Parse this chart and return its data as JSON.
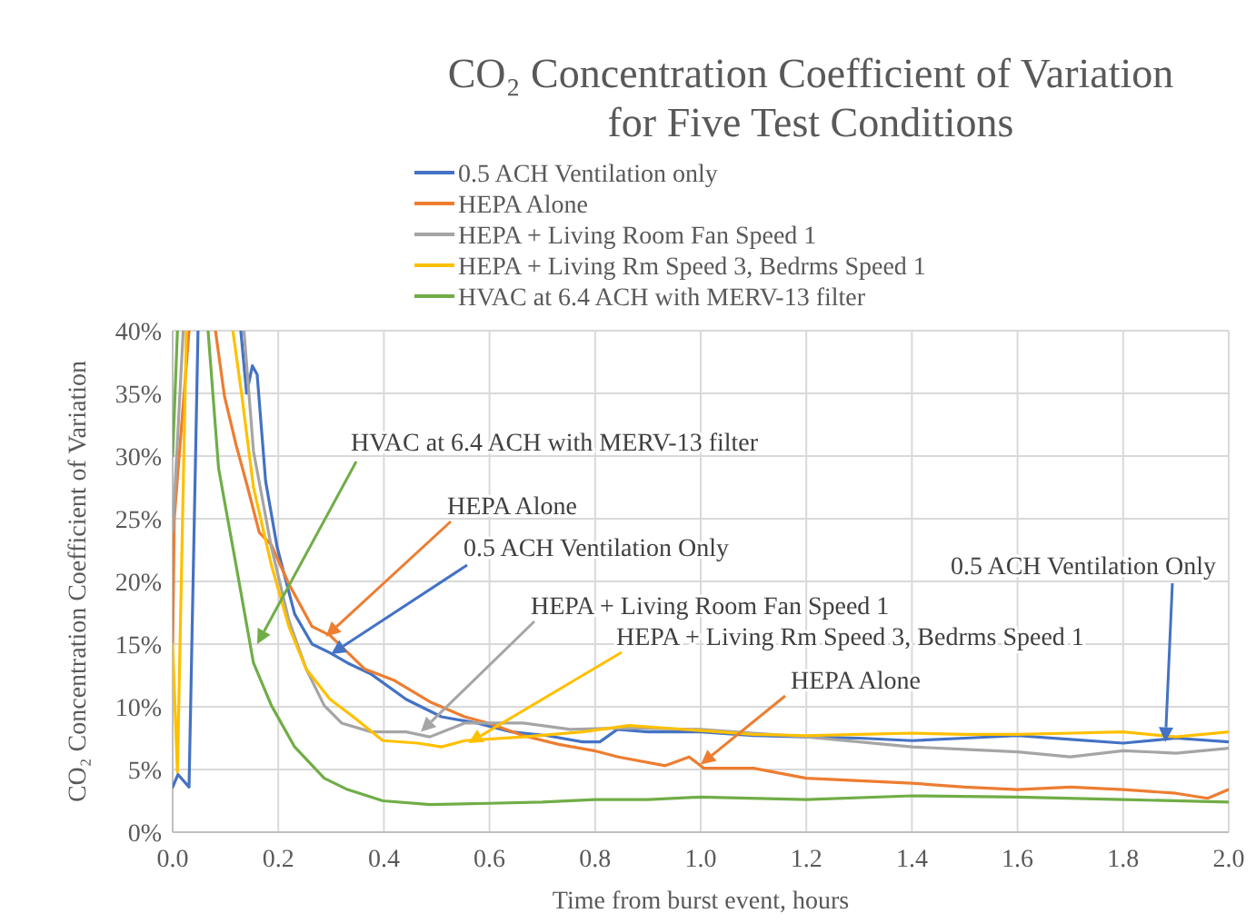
{
  "chart_data": {
    "type": "line",
    "title": "CO₂ Concentration Coefficient of Variation",
    "subtitle": "for Five Test Conditions",
    "xlabel": "Time from burst event, hours",
    "ylabel": "CO₂ Concentration Coefficient of Variation",
    "xlim": [
      0,
      2
    ],
    "xticks": [
      {
        "value": 0,
        "label": "0.0"
      },
      {
        "value": 0.2,
        "label": "0.2"
      },
      {
        "value": 0.4,
        "label": "0.4"
      },
      {
        "value": 0.6,
        "label": "0.6"
      },
      {
        "value": 0.8,
        "label": "0.8"
      },
      {
        "value": 1,
        "label": "1.0"
      },
      {
        "value": 1.2,
        "label": "1.2"
      },
      {
        "value": 1.4,
        "label": "1.4"
      },
      {
        "value": 1.6,
        "label": "1.6"
      },
      {
        "value": 1.8,
        "label": "1.8"
      },
      {
        "value": 2,
        "label": "2.0"
      }
    ],
    "ylim": [
      0,
      40
    ],
    "yticks": [
      {
        "value": 0,
        "label": "0%"
      },
      {
        "value": 5,
        "label": "5%"
      },
      {
        "value": 10,
        "label": "10%"
      },
      {
        "value": 15,
        "label": "15%"
      },
      {
        "value": 20,
        "label": "20%"
      },
      {
        "value": 25,
        "label": "25%"
      },
      {
        "value": 30,
        "label": "30%"
      },
      {
        "value": 35,
        "label": "35%"
      },
      {
        "value": 40,
        "label": "40%"
      }
    ],
    "grid": true,
    "legend": "top",
    "marker": "none",
    "line_style": "solid",
    "series": [
      {
        "name": "0.5 ACH Ventilation only",
        "color": "#4472c4",
        "x": [
          0,
          0.01,
          0.031,
          0.048,
          0.09,
          0.129,
          0.14,
          0.151,
          0.16,
          0.176,
          0.198,
          0.231,
          0.264,
          0.298,
          0.331,
          0.376,
          0.442,
          0.509,
          0.576,
          0.642,
          0.709,
          0.776,
          0.809,
          0.842,
          0.9,
          1.0,
          1.1,
          1.2,
          1.3,
          1.4,
          1.5,
          1.6,
          1.7,
          1.8,
          1.9,
          2.0
        ],
        "values": [
          3.6,
          4.6,
          3.6,
          40,
          null,
          40,
          35,
          37.2,
          36.5,
          28,
          22.7,
          17.4,
          15,
          14.3,
          13.5,
          12.6,
          10.6,
          9.2,
          8.7,
          8.0,
          7.7,
          7.2,
          7.2,
          8.2,
          8.0,
          8.0,
          7.7,
          7.6,
          7.5,
          7.3,
          7.5,
          7.7,
          7.4,
          7.1,
          7.5,
          7.2
        ]
      },
      {
        "name": "HEPA Alone",
        "color": "#ed7d31",
        "x": [
          0,
          0.003,
          0.031,
          0.05,
          0.081,
          0.098,
          0.12,
          0.142,
          0.164,
          0.187,
          0.22,
          0.264,
          0.298,
          0.364,
          0.42,
          0.487,
          0.553,
          0.598,
          0.664,
          0.731,
          0.798,
          0.844,
          0.933,
          0.978,
          1.006,
          1.1,
          1.2,
          1.3,
          1.4,
          1.5,
          1.6,
          1.7,
          1.8,
          1.9,
          1.96,
          2.0
        ],
        "values": [
          15,
          25,
          40,
          null,
          40,
          34.8,
          30.9,
          27.5,
          23.9,
          22.9,
          19.8,
          16.4,
          15.7,
          13,
          12.1,
          10.4,
          9.2,
          8.7,
          7.7,
          7.0,
          6.5,
          6.0,
          5.3,
          6.0,
          5.1,
          5.1,
          4.3,
          4.1,
          3.9,
          3.6,
          3.4,
          3.6,
          3.4,
          3.1,
          2.7,
          3.4
        ]
      },
      {
        "name": "HEPA + Living Room Fan Speed 1",
        "color": "#a5a5a5",
        "x": [
          0,
          0.02,
          0.08,
          0.135,
          0.153,
          0.187,
          0.22,
          0.253,
          0.287,
          0.32,
          0.376,
          0.442,
          0.487,
          0.553,
          0.664,
          0.753,
          0.85,
          1.0,
          1.1,
          1.2,
          1.3,
          1.4,
          1.5,
          1.6,
          1.7,
          1.8,
          1.9,
          2.0
        ],
        "values": [
          24,
          40,
          null,
          40,
          30.4,
          22.7,
          16.9,
          13,
          10.1,
          8.7,
          8.0,
          8.0,
          7.6,
          8.7,
          8.7,
          8.2,
          8.3,
          8.2,
          7.9,
          7.6,
          7.2,
          6.8,
          6.6,
          6.4,
          6.0,
          6.5,
          6.3,
          6.7
        ]
      },
      {
        "name": "HEPA + Living Rm Speed 3, Bedrms Speed 1",
        "color": "#ffc000",
        "x": [
          0,
          0.009,
          0.026,
          0.07,
          0.114,
          0.131,
          0.153,
          0.187,
          0.22,
          0.253,
          0.298,
          0.342,
          0.398,
          0.464,
          0.509,
          0.553,
          0.664,
          0.776,
          0.864,
          1.0,
          1.1,
          1.2,
          1.3,
          1.4,
          1.5,
          1.6,
          1.7,
          1.8,
          1.9,
          2.0
        ],
        "values": [
          15,
          4.8,
          40,
          null,
          40,
          34.8,
          27.5,
          21.3,
          16.4,
          13,
          10.6,
          9.2,
          7.3,
          7.1,
          6.8,
          7.3,
          7.6,
          8.0,
          8.5,
          8.1,
          7.8,
          7.7,
          7.8,
          7.9,
          7.8,
          7.8,
          7.9,
          8.0,
          7.6,
          8.0
        ]
      },
      {
        "name": "HVAC at 6.4 ACH with MERV-13 filter",
        "color": "#70ad47",
        "x": [
          0,
          0.009,
          0.04,
          0.067,
          0.087,
          0.12,
          0.153,
          0.187,
          0.231,
          0.287,
          0.331,
          0.398,
          0.487,
          0.6,
          0.7,
          0.8,
          0.9,
          1.0,
          1.2,
          1.4,
          1.6,
          1.8,
          2.0
        ],
        "values": [
          30,
          40,
          null,
          40,
          29,
          21.3,
          13.5,
          10.1,
          6.8,
          4.3,
          3.4,
          2.5,
          2.2,
          2.3,
          2.4,
          2.6,
          2.6,
          2.8,
          2.6,
          2.9,
          2.8,
          2.6,
          2.4
        ]
      }
    ],
    "annotations": [
      {
        "text": "HVAC at 6.4 ACH with MERV-13 filter",
        "x": 0.16,
        "y": 15
      },
      {
        "text": "HEPA Alone",
        "x": 0.29,
        "y": 15.6
      },
      {
        "text": "0.5 ACH Ventilation Only",
        "x": 0.3,
        "y": 14.2
      },
      {
        "text": "HEPA + Living Room Fan Speed 1",
        "x": 0.47,
        "y": 8.0
      },
      {
        "text": "HEPA + Living Rm Speed 3, Bedrms Speed 1",
        "x": 0.56,
        "y": 7.1
      },
      {
        "text": "HEPA Alone",
        "x": 1.0,
        "y": 5.4
      },
      {
        "text": "0.5 ACH Ventilation Only",
        "x": 1.88,
        "y": 7.2
      }
    ]
  }
}
